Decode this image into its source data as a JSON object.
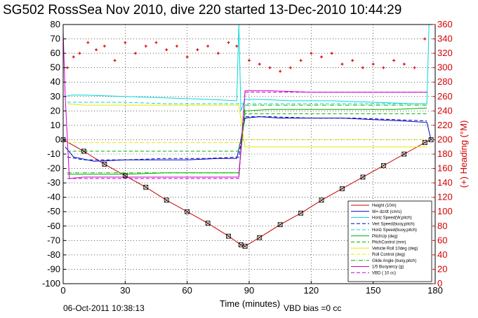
{
  "chart_data": {
    "type": "line",
    "title": "SG502 RossSea Nov 2010, dive 220 started 13-Dec-2010 10:44:29",
    "xlabel": "Time (minutes)",
    "ylabel": "",
    "y2label": "(+) Heading (°M)",
    "xlim": [
      0,
      180
    ],
    "ylim": [
      -100,
      80
    ],
    "y2lim": [
      0,
      360
    ],
    "xticks": [
      0,
      30,
      60,
      90,
      120,
      150,
      180
    ],
    "yticks": [
      -100,
      -90,
      -80,
      -70,
      -60,
      -50,
      -40,
      -30,
      -20,
      -10,
      0,
      10,
      20,
      30,
      40,
      50,
      60,
      70,
      80
    ],
    "y2ticks": [
      0,
      20,
      40,
      60,
      80,
      100,
      120,
      140,
      160,
      180,
      200,
      220,
      240,
      260,
      280,
      300,
      320,
      340,
      360
    ],
    "grid": true,
    "legend_position": "bottom-right",
    "series": [
      {
        "name": "Height (10m)",
        "color": "#c00000",
        "style": "solid",
        "x": [
          0,
          10,
          20,
          30,
          40,
          50,
          60,
          70,
          80,
          86,
          88,
          95,
          105,
          115,
          125,
          135,
          145,
          155,
          165,
          175,
          178
        ],
        "y": [
          0,
          -8,
          -17,
          -25,
          -33,
          -42,
          -50,
          -58,
          -67,
          -73,
          -74,
          -68,
          -59,
          -51,
          -42,
          -34,
          -26,
          -18,
          -10,
          -2,
          0
        ]
      },
      {
        "name": "W= dz/dt (cm/s)",
        "color": "#0000c0",
        "style": "solid",
        "x": [
          1,
          5,
          15,
          30,
          45,
          60,
          75,
          84,
          86,
          88,
          95,
          105,
          120,
          135,
          150,
          165,
          176,
          178
        ],
        "y": [
          -5,
          -12,
          -15,
          -14,
          -14,
          -14,
          -13,
          -13,
          0,
          15,
          16,
          15,
          15,
          15,
          14,
          13,
          12,
          0
        ]
      },
      {
        "name": "Horiz Speed(W,pitch)",
        "color": "#00d8d8",
        "style": "solid",
        "x": [
          1,
          4,
          10,
          30,
          50,
          70,
          84,
          85,
          86,
          88,
          95,
          110,
          130,
          150,
          170,
          176,
          177
        ],
        "y": [
          30,
          31,
          31,
          30,
          29,
          28,
          27,
          80,
          20,
          28,
          28,
          27,
          27,
          26,
          25,
          25,
          80
        ]
      },
      {
        "name": "Vert Speed(buoy,pitch)",
        "color": "#0000c0",
        "style": "dashed",
        "x": [
          2,
          10,
          30,
          50,
          70,
          85,
          88,
          100,
          120,
          140,
          160,
          176
        ],
        "y": [
          -12,
          -14,
          -14,
          -13,
          -13,
          -12,
          16,
          16,
          15,
          15,
          14,
          13
        ]
      },
      {
        "name": "Horiz Speed(buoy,pitch)",
        "color": "#00d8d8",
        "style": "dashed",
        "x": [
          2,
          10,
          30,
          50,
          70,
          85,
          88,
          100,
          120,
          140,
          160,
          176
        ],
        "y": [
          26,
          26,
          26,
          25,
          25,
          25,
          25,
          25,
          25,
          25,
          25,
          25
        ]
      },
      {
        "name": "PitchUp (deg)",
        "color": "#00b000",
        "style": "solid",
        "x": [
          2,
          10,
          30,
          50,
          70,
          85,
          88,
          100,
          120,
          140,
          160,
          176
        ],
        "y": [
          -24,
          -24,
          -24,
          -23,
          -23,
          -23,
          20,
          21,
          21,
          21,
          21,
          22
        ]
      },
      {
        "name": "PitchControl (mm)",
        "color": "#00b000",
        "style": "dashed",
        "x": [
          2,
          10,
          30,
          50,
          70,
          85,
          88,
          100,
          120,
          140,
          160,
          176
        ],
        "y": [
          -8,
          -8,
          -8,
          -8,
          -8,
          -8,
          18,
          18,
          18,
          18,
          18,
          18
        ]
      },
      {
        "name": "Vehicle Roll 10deg (deg)",
        "color": "#e8e800",
        "style": "solid",
        "x": [
          2,
          10,
          30,
          50,
          70,
          85,
          88,
          100,
          120,
          140,
          160,
          176
        ],
        "y": [
          25,
          24,
          24,
          24,
          24,
          24,
          -5,
          -5,
          -5,
          -5,
          -5,
          -5
        ]
      },
      {
        "name": "Roll Control (deg)",
        "color": "#e8e800",
        "style": "dashed",
        "x": [
          2,
          10,
          30,
          50,
          70,
          85,
          88,
          100,
          120,
          140,
          160,
          176
        ],
        "y": [
          -2,
          -2,
          -2,
          -2,
          -2,
          -2,
          0,
          0,
          0,
          0,
          0,
          0
        ]
      },
      {
        "name": "Glide Angle (buoy,pitch)",
        "color": "#00b000",
        "style": "dashdot",
        "x": [
          2,
          10,
          30,
          50,
          70,
          85,
          88,
          100,
          120,
          140,
          160,
          176
        ],
        "y": [
          -23,
          -23,
          -23,
          -23,
          -23,
          -23,
          24,
          24,
          24,
          24,
          24,
          24
        ]
      },
      {
        "name": "1/5 Buoyancy (g)",
        "color": "#cc00cc",
        "style": "solid",
        "x": [
          0,
          1,
          3,
          10,
          30,
          50,
          70,
          85,
          88,
          100,
          120,
          140,
          160,
          176
        ],
        "y": [
          75,
          30,
          -27,
          -26,
          -26,
          -26,
          -26,
          -26,
          34,
          34,
          33,
          33,
          33,
          33
        ]
      },
      {
        "name": "VBD ( 10 cc)",
        "color": "#cc00cc",
        "style": "dashed",
        "x": [
          2,
          10,
          30,
          50,
          70,
          85,
          88,
          100,
          120,
          140,
          160,
          176
        ],
        "y": [
          -27,
          -27,
          -27,
          -27,
          -27,
          -27,
          33,
          33,
          33,
          33,
          33,
          33
        ]
      }
    ],
    "heading_series": {
      "name": "Heading",
      "color": "#e00000",
      "axis": "right",
      "x": [
        2,
        5,
        8,
        12,
        16,
        20,
        25,
        30,
        35,
        40,
        45,
        50,
        55,
        60,
        65,
        70,
        75,
        80,
        84,
        90,
        95,
        100,
        105,
        110,
        115,
        120,
        125,
        130,
        135,
        140,
        145,
        150,
        155,
        160,
        165,
        170,
        175
      ],
      "y": [
        300,
        315,
        320,
        335,
        325,
        330,
        310,
        335,
        320,
        330,
        335,
        325,
        330,
        315,
        325,
        330,
        320,
        335,
        330,
        310,
        305,
        300,
        295,
        300,
        310,
        320,
        315,
        320,
        305,
        310,
        300,
        305,
        300,
        310,
        305,
        300,
        340
      ]
    }
  },
  "footer": {
    "timestamp": "06-Oct-2011 10:38:13",
    "vbd_bias": "VBD bias =0 cc"
  }
}
